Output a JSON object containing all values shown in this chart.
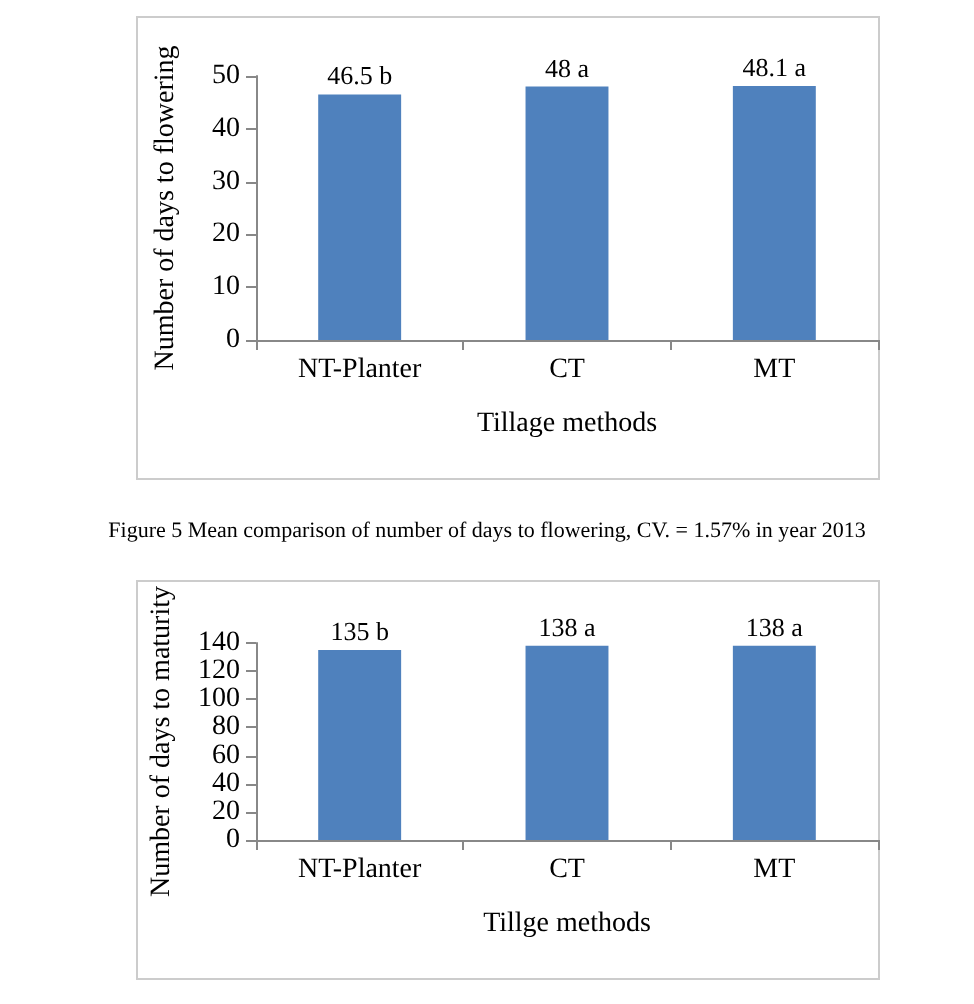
{
  "chart_data": [
    {
      "type": "bar",
      "categories": [
        "NT-Planter",
        "CT",
        "MT"
      ],
      "values": [
        46.5,
        48,
        48.1
      ],
      "value_labels": [
        "46.5 b",
        "48 a",
        "48.1 a"
      ],
      "color": "#4f81bd",
      "ylim": [
        0,
        50
      ],
      "yticks": [
        0,
        10,
        20,
        30,
        40,
        50
      ],
      "ylabel": "Number of days to flowering",
      "xlabel": "Tillage methods",
      "grid": false,
      "annotations": [
        "Figure 5 Mean comparison of number of days to flowering, CV. = 1.57% in year 2013"
      ]
    },
    {
      "type": "bar",
      "categories": [
        "NT-Planter",
        "CT",
        "MT"
      ],
      "values": [
        135,
        138,
        138
      ],
      "value_labels": [
        "135 b",
        "138 a",
        "138 a"
      ],
      "color": "#4f81bd",
      "ylim": [
        0,
        140
      ],
      "yticks": [
        0,
        20,
        40,
        60,
        80,
        100,
        120,
        140
      ],
      "ylabel": "Number of days to maturity",
      "xlabel": "Tillge methods",
      "grid": false
    }
  ]
}
